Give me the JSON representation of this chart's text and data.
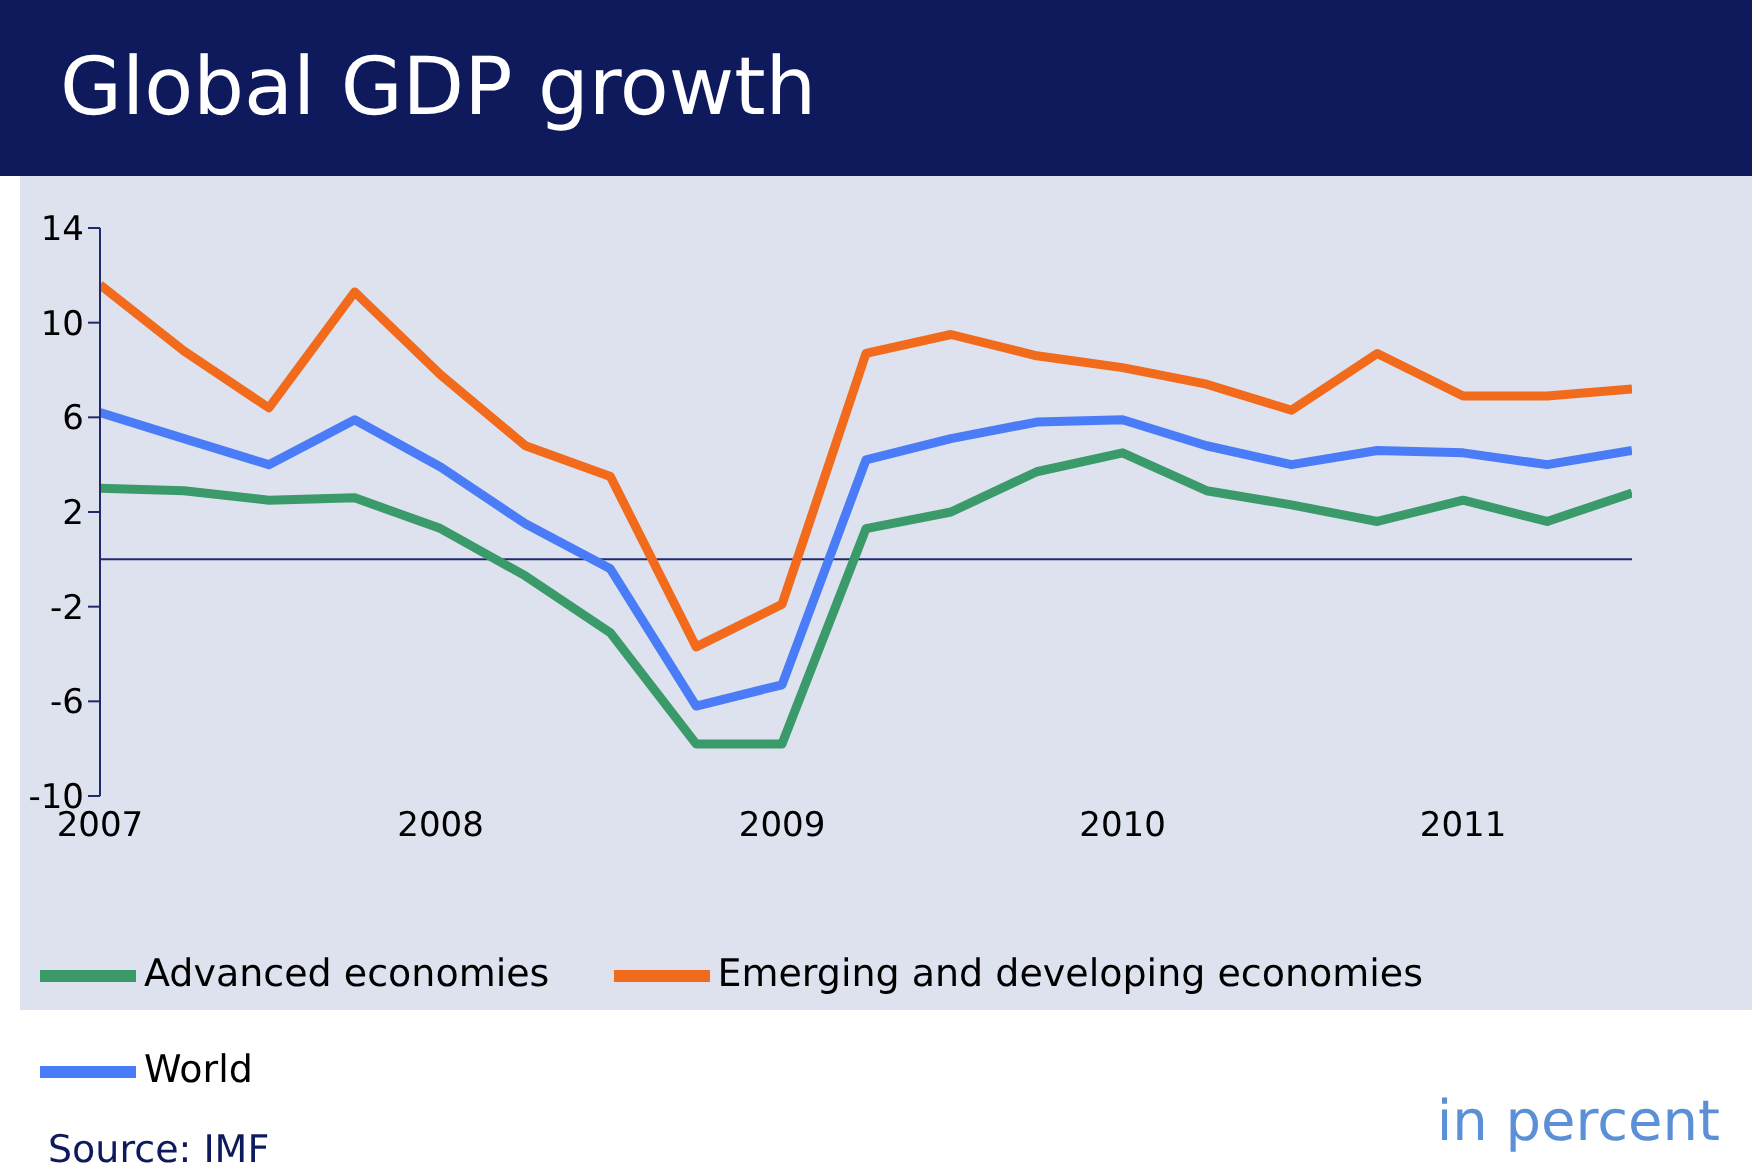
{
  "chart_data": {
    "type": "line",
    "title": "Global GDP growth",
    "x": [
      "2007-01",
      "2007-04",
      "2007-07",
      "2007-10",
      "2008-01",
      "2008-04",
      "2008-07",
      "2008-10",
      "2009-01",
      "2009-04",
      "2009-07",
      "2009-10",
      "2010-01",
      "2010-04",
      "2010-07",
      "2010-10",
      "2011-01",
      "2011-04",
      "2011-07"
    ],
    "series": [
      {
        "name": "World",
        "color": "#4a7cf7",
        "values": [
          6.2,
          5.1,
          4.0,
          5.9,
          3.9,
          1.5,
          -0.4,
          -6.2,
          -5.3,
          4.2,
          5.1,
          5.8,
          5.9,
          4.8,
          4.0,
          4.6,
          4.5,
          4.0,
          4.6
        ]
      },
      {
        "name": "Advanced economies",
        "color": "#3a9a6a",
        "values": [
          3.0,
          2.9,
          2.5,
          2.6,
          1.3,
          -0.7,
          -3.1,
          -7.8,
          -7.8,
          1.3,
          2.0,
          3.7,
          4.5,
          2.9,
          2.3,
          1.6,
          2.5,
          1.6,
          2.8
        ]
      },
      {
        "name": "Emerging and developing economies",
        "color": "#f26a1b",
        "values": [
          11.6,
          8.8,
          6.4,
          11.3,
          7.8,
          4.8,
          3.5,
          -3.7,
          -1.9,
          8.7,
          9.5,
          8.6,
          8.1,
          7.4,
          6.3,
          8.7,
          6.9,
          6.9,
          7.2
        ]
      }
    ],
    "xlim": [
      "2007",
      "2011-07"
    ],
    "xticks": [
      {
        "value": "2007",
        "label": "2007"
      },
      {
        "value": "2008",
        "label": "2008"
      },
      {
        "value": "2009",
        "label": "2009"
      },
      {
        "value": "2010",
        "label": "2010"
      },
      {
        "value": "2011",
        "label": "2011"
      }
    ],
    "ylim": [
      -10,
      14
    ],
    "yticks": [
      -10,
      -6,
      -2,
      2,
      6,
      10,
      14
    ],
    "ref_lines": [
      {
        "axis": "y",
        "value": 0,
        "color": "#1f2a6b"
      }
    ],
    "legend": "bottom",
    "marker": "none",
    "line_style": "solid",
    "annotations": [
      "in percent",
      "Source: IMF"
    ]
  }
}
